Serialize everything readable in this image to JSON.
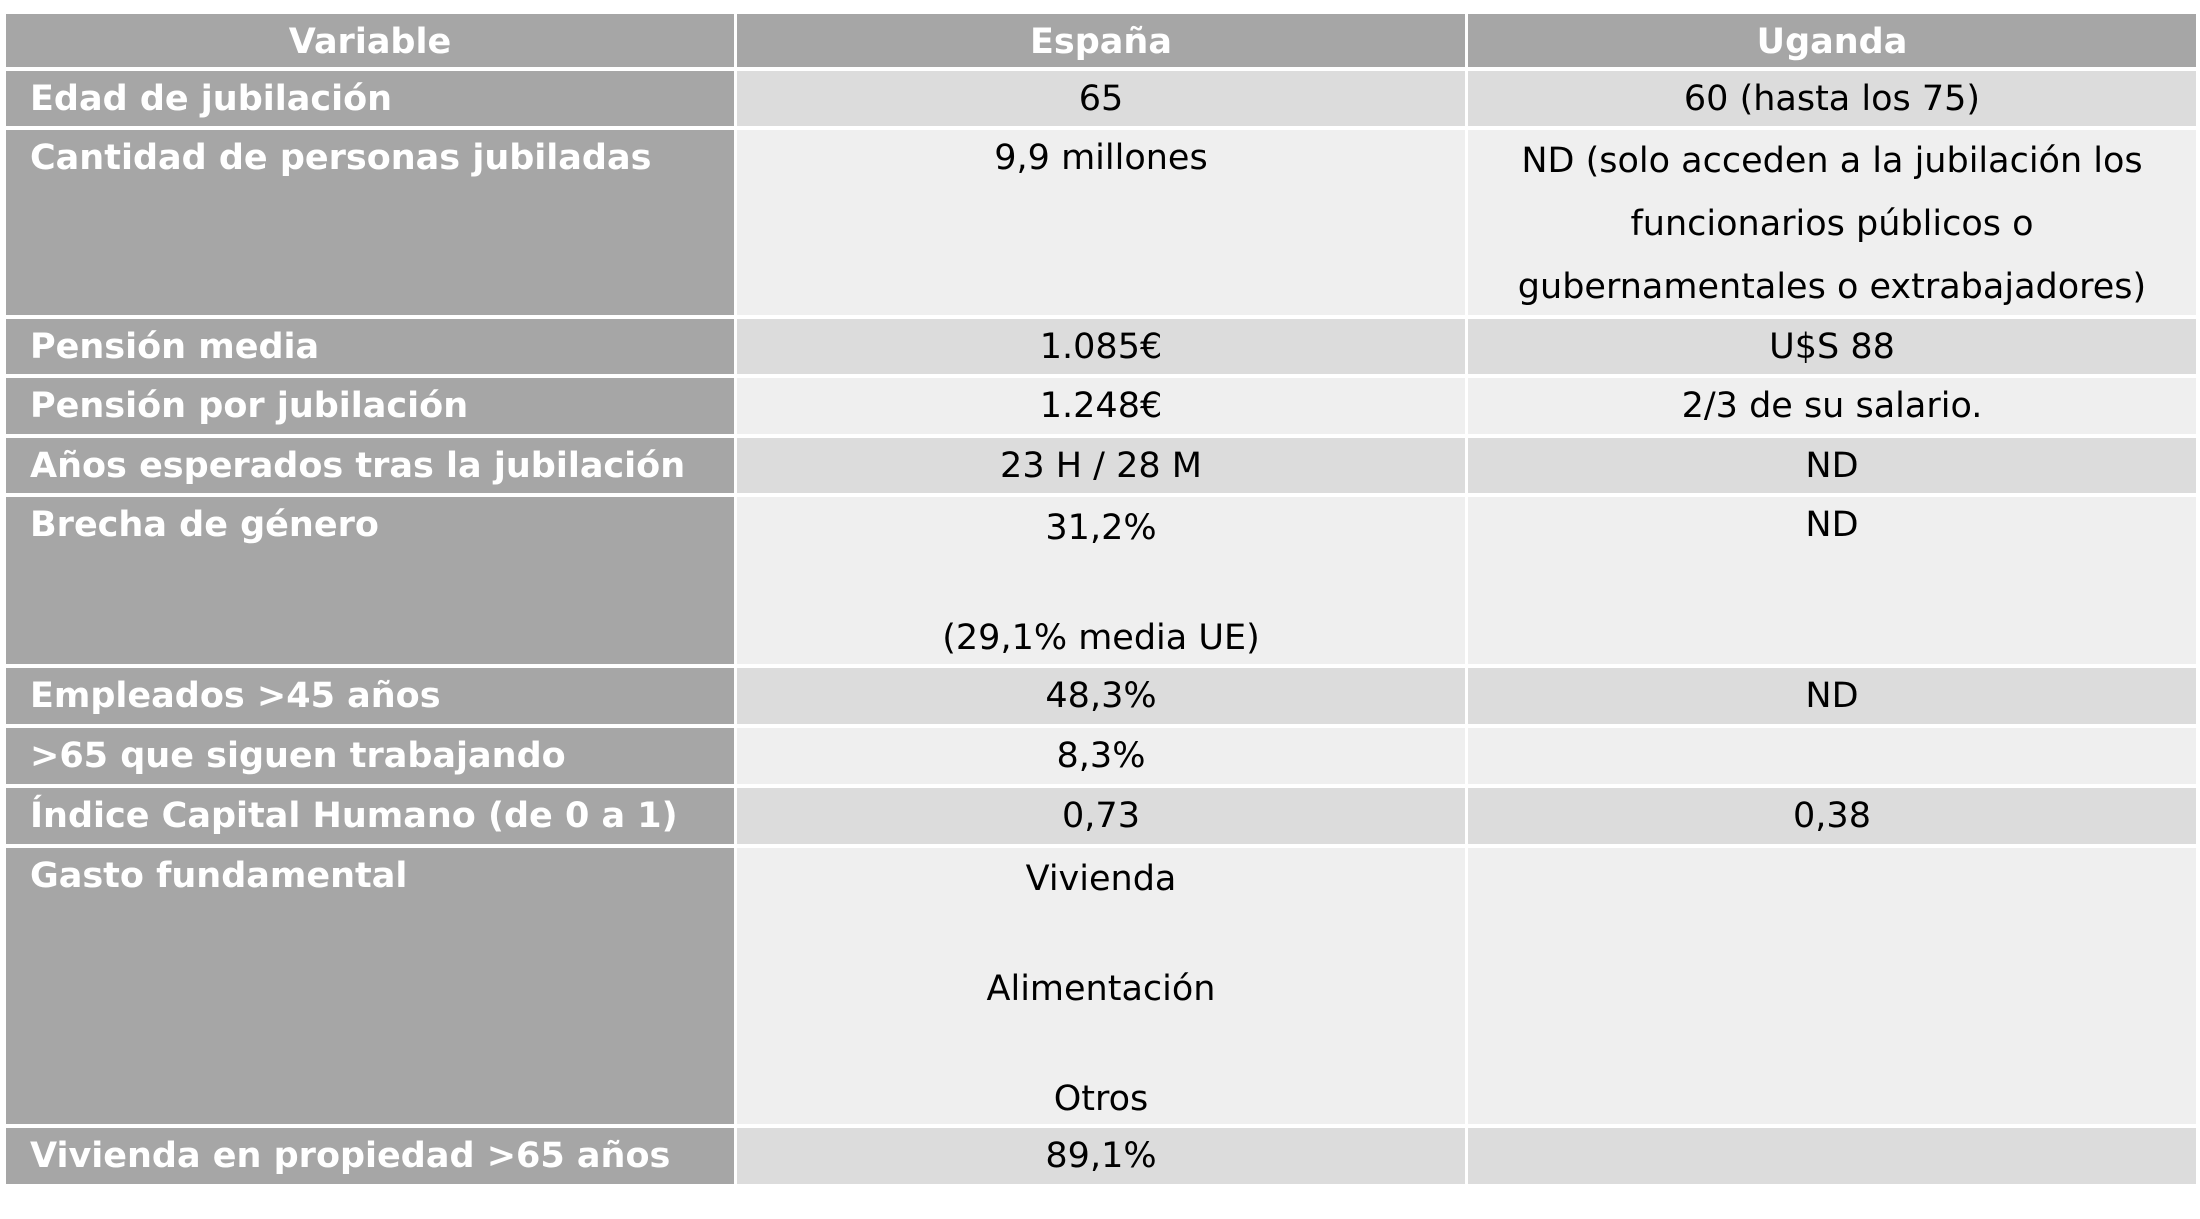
{
  "table": {
    "headers": [
      "Variable",
      "España",
      "Uganda"
    ],
    "rows": [
      {
        "variable": "Edad de jubilación",
        "espana": "65",
        "uganda": "60 (hasta los 75)"
      },
      {
        "variable": "Cantidad de personas jubiladas",
        "espana": "9,9 millones",
        "uganda_lines": [
          "ND (solo acceden a la jubilación los",
          "funcionarios públicos o",
          "gubernamentales o extrabajadores)"
        ]
      },
      {
        "variable": "Pensión media",
        "espana": "1.085€",
        "uganda": "U$S 88"
      },
      {
        "variable": "Pensión por jubilación",
        "espana": "1.248€",
        "uganda": "2/3 de su salario."
      },
      {
        "variable": "Años esperados tras la jubilación",
        "espana": "23 H / 28 M",
        "uganda": "ND"
      },
      {
        "variable": "Brecha de género",
        "espana_lines": [
          "31,2%",
          "(29,1% media UE)"
        ],
        "uganda": "ND"
      },
      {
        "variable": "Empleados >45 años",
        "espana": "48,3%",
        "uganda": "ND"
      },
      {
        "variable": ">65 que siguen trabajando",
        "espana": "8,3%",
        "uganda": ""
      },
      {
        "variable": "Índice Capital Humano (de 0 a 1)",
        "espana": "0,73",
        "uganda": "0,38"
      },
      {
        "variable": "Gasto fundamental",
        "espana_lines": [
          "Vivienda",
          "Alimentación",
          "Otros"
        ],
        "uganda": ""
      },
      {
        "variable": "Vivienda en propiedad >65 años",
        "espana": "89,1%",
        "uganda": ""
      }
    ]
  }
}
